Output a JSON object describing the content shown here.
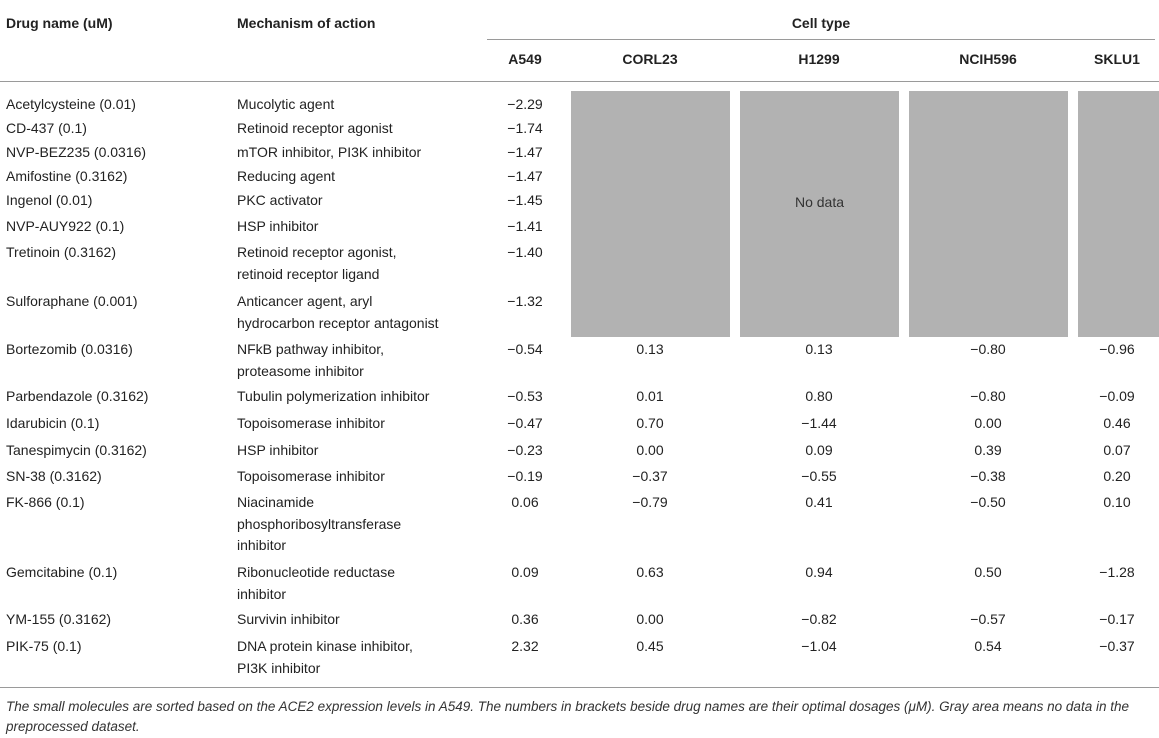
{
  "header": {
    "drug_name": "Drug name (uM)",
    "mechanism": "Mechanism of action",
    "cell_type": "Cell type",
    "cell_lines": [
      "A549",
      "CORL23",
      "H1299",
      "NCIH596",
      "SKLU1"
    ]
  },
  "no_data_label": "No data",
  "no_data_color": "#b2b2b2",
  "rows": [
    {
      "drug": "Acetylcysteine (0.01)",
      "mechanism": [
        "Mucolytic agent"
      ],
      "values": [
        "−2.29",
        "",
        "",
        "",
        ""
      ]
    },
    {
      "drug": "CD-437 (0.1)",
      "mechanism": [
        "Retinoid receptor agonist"
      ],
      "values": [
        "−1.74",
        "",
        "",
        "",
        ""
      ]
    },
    {
      "drug": "NVP-BEZ235 (0.0316)",
      "mechanism": [
        "mTOR inhibitor, PI3K inhibitor"
      ],
      "values": [
        "−1.47",
        "",
        "",
        "",
        ""
      ]
    },
    {
      "drug": "Amifostine (0.3162)",
      "mechanism": [
        "Reducing agent"
      ],
      "values": [
        "−1.47",
        "",
        "",
        "",
        ""
      ]
    },
    {
      "drug": "Ingenol (0.01)",
      "mechanism": [
        "PKC activator"
      ],
      "values": [
        "−1.45",
        "",
        "",
        "",
        ""
      ]
    },
    {
      "drug": "NVP-AUY922 (0.1)",
      "mechanism": [
        "HSP inhibitor"
      ],
      "values": [
        "−1.41",
        "",
        "",
        "",
        ""
      ]
    },
    {
      "drug": "Tretinoin (0.3162)",
      "mechanism": [
        "Retinoid receptor agonist,",
        "retinoid receptor ligand"
      ],
      "values": [
        "−1.40",
        "",
        "",
        "",
        ""
      ]
    },
    {
      "drug": "Sulforaphane (0.001)",
      "mechanism": [
        "Anticancer agent, aryl",
        "hydrocarbon receptor antagonist"
      ],
      "values": [
        "−1.32",
        "",
        "",
        "",
        ""
      ]
    },
    {
      "drug": "Bortezomib (0.0316)",
      "mechanism": [
        "NFkB pathway inhibitor,",
        "proteasome inhibitor"
      ],
      "values": [
        "−0.54",
        "0.13",
        "0.13",
        "−0.80",
        "−0.96"
      ]
    },
    {
      "drug": "Parbendazole (0.3162)",
      "mechanism": [
        "Tubulin polymerization inhibitor"
      ],
      "values": [
        "−0.53",
        "0.01",
        "0.80",
        "−0.80",
        "−0.09"
      ]
    },
    {
      "drug": "Idarubicin (0.1)",
      "mechanism": [
        "Topoisomerase inhibitor"
      ],
      "values": [
        "−0.47",
        "0.70",
        "−1.44",
        "0.00",
        "0.46"
      ]
    },
    {
      "drug": "Tanespimycin (0.3162)",
      "mechanism": [
        "HSP inhibitor"
      ],
      "values": [
        "−0.23",
        "0.00",
        "0.09",
        "0.39",
        "0.07"
      ]
    },
    {
      "drug": "SN-38 (0.3162)",
      "mechanism": [
        "Topoisomerase inhibitor"
      ],
      "values": [
        "−0.19",
        "−0.37",
        "−0.55",
        "−0.38",
        "0.20"
      ]
    },
    {
      "drug": "FK-866 (0.1)",
      "mechanism": [
        "Niacinamide",
        "phosphoribosyltransferase",
        "inhibitor"
      ],
      "values": [
        "0.06",
        "−0.79",
        "0.41",
        "−0.50",
        "0.10"
      ]
    },
    {
      "drug": "Gemcitabine (0.1)",
      "mechanism": [
        "Ribonucleotide reductase",
        "inhibitor"
      ],
      "values": [
        "0.09",
        "0.63",
        "0.94",
        "0.50",
        "−1.28"
      ]
    },
    {
      "drug": "YM-155 (0.3162)",
      "mechanism": [
        "Survivin inhibitor"
      ],
      "values": [
        "0.36",
        "0.00",
        "−0.82",
        "−0.57",
        "−0.17"
      ]
    },
    {
      "drug": "PIK-75 (0.1)",
      "mechanism": [
        "DNA protein kinase inhibitor,",
        "PI3K inhibitor"
      ],
      "values": [
        "2.32",
        "0.45",
        "−1.04",
        "0.54",
        "−0.37"
      ]
    }
  ],
  "footnote": "The small molecules are sorted based on the ACE2 expression levels in A549. The numbers in brackets beside drug names are their optimal dosages (μM). Gray area means no data in the preprocessed dataset."
}
